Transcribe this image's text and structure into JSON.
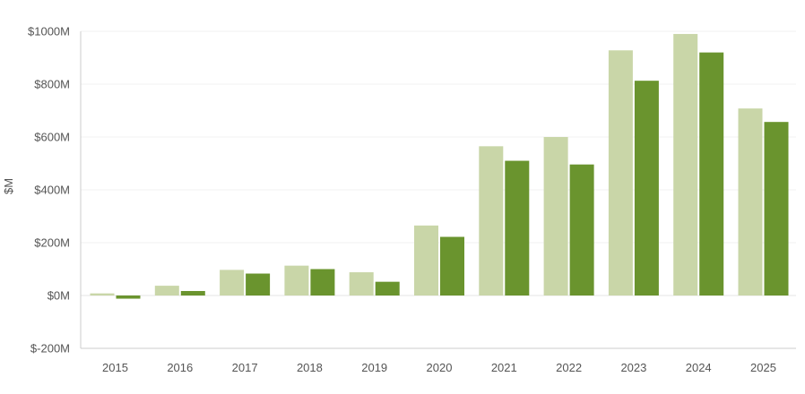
{
  "chart_data": {
    "type": "bar",
    "title": "",
    "xlabel": "",
    "ylabel": "$M",
    "ylim": [
      -200,
      1000
    ],
    "yticks": [
      {
        "value": -200,
        "label": "$-200M"
      },
      {
        "value": 0,
        "label": "$0M"
      },
      {
        "value": 200,
        "label": "$200M"
      },
      {
        "value": 400,
        "label": "$400M"
      },
      {
        "value": 600,
        "label": "$600M"
      },
      {
        "value": 800,
        "label": "$800M"
      },
      {
        "value": 1000,
        "label": "$1000M"
      }
    ],
    "categories": [
      "2015",
      "2016",
      "2017",
      "2018",
      "2019",
      "2020",
      "2021",
      "2022",
      "2023",
      "2024",
      "2025"
    ],
    "series": [
      {
        "color": "#c9d6a8",
        "values": [
          8,
          37,
          97,
          113,
          88,
          265,
          565,
          600,
          928,
          990,
          708
        ]
      },
      {
        "color": "#6a942e",
        "values": [
          -12,
          17,
          83,
          100,
          52,
          222,
          510,
          496,
          813,
          920,
          657
        ]
      }
    ],
    "grid": true,
    "legend": "none"
  }
}
